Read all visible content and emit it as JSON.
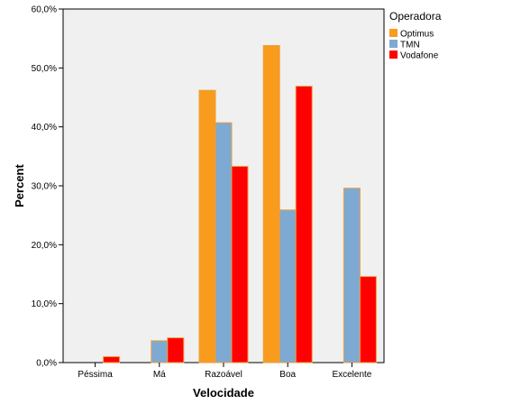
{
  "chart_data": {
    "type": "bar",
    "title": "",
    "xlabel": "Velocidade",
    "ylabel": "Percent",
    "categories": [
      "Péssima",
      "Má",
      "Razoável",
      "Boa",
      "Excelente"
    ],
    "series": [
      {
        "name": "Optimus",
        "color": "#f99b1c",
        "values": [
          0.0,
          0.0,
          46.2,
          53.8,
          0.0
        ]
      },
      {
        "name": "TMN",
        "color": "#7ea9d3",
        "values": [
          0.0,
          3.7,
          40.7,
          25.9,
          29.6
        ]
      },
      {
        "name": "Vodafone",
        "color": "#ff0000",
        "values": [
          1.0,
          4.2,
          33.3,
          46.9,
          14.6
        ]
      }
    ],
    "ylim": [
      0,
      60
    ],
    "yticks": [
      0,
      10,
      20,
      30,
      40,
      50,
      60
    ],
    "ytick_labels": [
      "0,0%",
      "10,0%",
      "20,0%",
      "30,0%",
      "40,0%",
      "50,0%",
      "60,0%"
    ],
    "legend_title": "Operadora",
    "legend_position": "top-right",
    "grid": false,
    "plot_background": "#f0f0f0"
  }
}
